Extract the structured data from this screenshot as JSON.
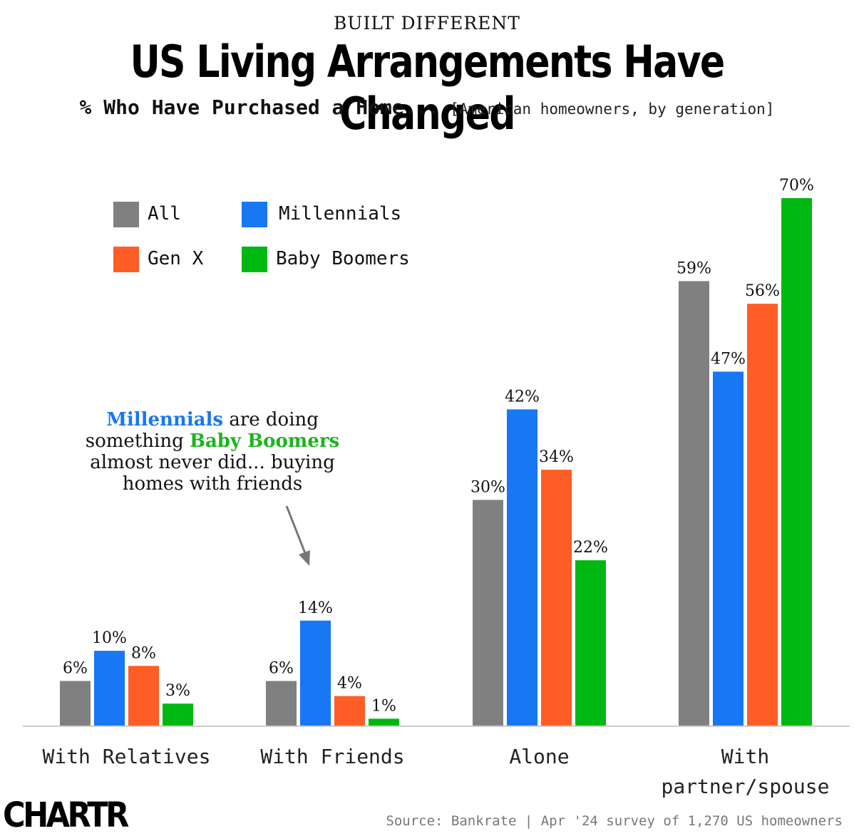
{
  "header": {
    "kicker": "BUILT DIFFERENT",
    "title": "US Living Arrangements Have Changed",
    "subtitle": "% Who Have Purchased a Home...",
    "subnote": "[American homeowners, by generation]"
  },
  "legend": [
    {
      "label": "All",
      "color": "#808080"
    },
    {
      "label": "Millennials",
      "color": "#1877f2"
    },
    {
      "label": "Gen X",
      "color": "#fe5d26"
    },
    {
      "label": "Baby Boomers",
      "color": "#00b812"
    }
  ],
  "annotation": {
    "part1": "Millennials",
    "part2": " are doing something ",
    "part3": "Baby Boomers",
    "part4": " almost never did... buying homes with friends"
  },
  "footer": {
    "logo": "CHARTR",
    "source": "Source: Bankrate | Apr '24 survey of 1,270 US homeowners"
  },
  "chart_data": {
    "type": "bar",
    "categories": [
      "With Relatives",
      "With Friends",
      "Alone",
      "With partner/spouse"
    ],
    "category_lines": [
      [
        "With Relatives"
      ],
      [
        "With Friends"
      ],
      [
        "Alone"
      ],
      [
        "With",
        "partner/spouse"
      ]
    ],
    "series": [
      {
        "name": "All",
        "color": "#808080",
        "values": [
          6,
          6,
          30,
          59
        ],
        "labels": [
          "6%",
          "6%",
          "30%",
          "59%"
        ]
      },
      {
        "name": "Millennials",
        "color": "#1877f2",
        "values": [
          10,
          14,
          42,
          47
        ],
        "labels": [
          "10%",
          "14%",
          "42%",
          "47%"
        ]
      },
      {
        "name": "Gen X",
        "color": "#fe5d26",
        "values": [
          8,
          4,
          34,
          56
        ],
        "labels": [
          "8%",
          "4%",
          "34%",
          "56%"
        ]
      },
      {
        "name": "Baby Boomers",
        "color": "#00b812",
        "values": [
          3,
          1,
          22,
          70
        ],
        "labels": [
          "3%",
          "1%",
          "22%",
          "70%"
        ]
      }
    ],
    "ylim": [
      0,
      70
    ],
    "grid": false,
    "legend_position": "top-left"
  }
}
